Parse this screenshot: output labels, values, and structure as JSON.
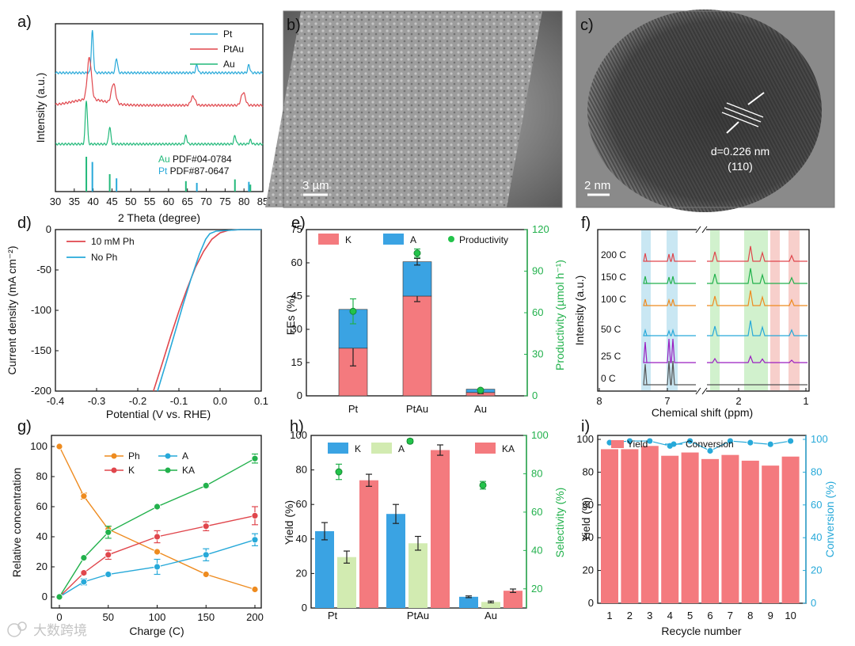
{
  "watermark": "大数跨境",
  "chart_data": [
    {
      "panel": "a",
      "type": "line",
      "xlabel": "2 Theta (degree)",
      "ylabel": "Intensity (a.u.)",
      "xlim": [
        30,
        85
      ],
      "xticks": [
        "30",
        "35",
        "40",
        "45",
        "50",
        "55",
        "60",
        "65",
        "70",
        "75",
        "80",
        "85"
      ],
      "legend": [
        "Pt",
        "PtAu",
        "Au"
      ],
      "series": [
        {
          "name": "Pt",
          "color": "#27a9d9",
          "peaks": [
            [
              39.8,
              0.85
            ],
            [
              46.2,
              0.3
            ],
            [
              67.5,
              0.16
            ],
            [
              81.3,
              0.16
            ]
          ]
        },
        {
          "name": "PtAu",
          "color": "#e0464c",
          "peaks": [
            [
              39.0,
              0.85
            ],
            [
              45.4,
              0.4
            ],
            [
              66.5,
              0.18
            ],
            [
              79.8,
              0.26
            ]
          ]
        },
        {
          "name": "Au",
          "color": "#22b97a",
          "peaks": [
            [
              38.2,
              0.9
            ],
            [
              44.4,
              0.35
            ],
            [
              64.6,
              0.17
            ],
            [
              77.6,
              0.17
            ],
            [
              81.7,
              0.08
            ]
          ]
        }
      ],
      "reference": [
        {
          "label": "Au",
          "card": "PDF#04-0784",
          "color": "#22b97a",
          "lines": [
            [
              38.2,
              1.0
            ],
            [
              44.4,
              0.5
            ],
            [
              64.6,
              0.3
            ],
            [
              77.6,
              0.35
            ],
            [
              81.7,
              0.2
            ]
          ]
        },
        {
          "label": "Pt",
          "card": "PDF#87-0647",
          "color": "#27a9d9",
          "lines": [
            [
              39.8,
              0.85
            ],
            [
              46.2,
              0.38
            ],
            [
              67.5,
              0.25
            ],
            [
              81.3,
              0.28
            ]
          ]
        }
      ]
    },
    {
      "panel": "b",
      "type": "image",
      "scale_bar": "3 µm"
    },
    {
      "panel": "c",
      "type": "image",
      "scale_bar": "2 nm",
      "annotation": [
        "d=0.226 nm",
        "(110)"
      ]
    },
    {
      "panel": "d",
      "type": "line",
      "xlabel": "Potential (V vs. RHE)",
      "ylabel": "Current density (mA cm⁻²)",
      "xlim": [
        -0.4,
        0.1
      ],
      "ylim": [
        -200,
        0
      ],
      "xticks": [
        "-0.4",
        "-0.3",
        "-0.2",
        "-0.1",
        "0.0",
        "0.1"
      ],
      "yticks": [
        "-200",
        "-150",
        "-100",
        "-50",
        "0"
      ],
      "series": [
        {
          "name": "10 mM Ph",
          "color": "#e0464c",
          "x": [
            -0.162,
            -0.14,
            -0.12,
            -0.1,
            -0.08,
            -0.06,
            -0.04,
            -0.02,
            0.0,
            0.02,
            0.05,
            0.1
          ],
          "y": [
            -200,
            -165,
            -132,
            -101,
            -73,
            -47,
            -27,
            -12,
            -4,
            -1,
            0,
            0
          ]
        },
        {
          "name": "No Ph",
          "color": "#27a9d9",
          "x": [
            -0.152,
            -0.13,
            -0.11,
            -0.09,
            -0.07,
            -0.05,
            -0.035,
            -0.025,
            -0.01,
            0.02,
            0.05,
            0.1
          ],
          "y": [
            -200,
            -163,
            -128,
            -93,
            -60,
            -30,
            -12,
            -5,
            -2,
            -1,
            0,
            0
          ]
        }
      ]
    },
    {
      "panel": "e",
      "type": "bar",
      "categories": [
        "Pt",
        "PtAu",
        "Au"
      ],
      "ylabel": "FEs (%)",
      "y2label": "Productivity (µmol h⁻¹)",
      "ylim": [
        0,
        75
      ],
      "y2lim": [
        0,
        120
      ],
      "yticks": [
        "0",
        "15",
        "30",
        "45",
        "60",
        "75"
      ],
      "y2ticks": [
        "0",
        "30",
        "60",
        "90",
        "120"
      ],
      "legend": [
        "K",
        "A",
        "Productivity"
      ],
      "series": [
        {
          "name": "K",
          "color": "#f47a7e",
          "values": [
            21.5,
            45,
            1.5
          ],
          "errors": [
            8,
            2.5,
            0.5
          ]
        },
        {
          "name": "A",
          "color": "#3aa3e3",
          "values": [
            17.5,
            15.5,
            1.5
          ],
          "errors": [
            0,
            1.5,
            0
          ]
        }
      ],
      "productivity": {
        "values": [
          61,
          103,
          4
        ],
        "errors": [
          9,
          3,
          1
        ]
      }
    },
    {
      "panel": "f",
      "type": "line",
      "xlabel": "Chemical shift (ppm)",
      "ylabel": "Intensity (a.u.)",
      "xticks": [
        "8",
        "7",
        "2",
        "1"
      ],
      "traces": [
        {
          "label": "200 C",
          "color": "#e0464c"
        },
        {
          "label": "150 C",
          "color": "#22b14c"
        },
        {
          "label": "100 C",
          "color": "#ee8b1f"
        },
        {
          "label": "50 C",
          "color": "#27a9d9"
        },
        {
          "label": "25 C",
          "color": "#9b1fc1"
        },
        {
          "label": "0 C",
          "color": "#555555"
        }
      ]
    },
    {
      "panel": "g",
      "type": "line",
      "xlabel": "Charge (C)",
      "ylabel": "Relative concentration",
      "xlim": [
        0,
        200
      ],
      "ylim": [
        0,
        100
      ],
      "xticks": [
        "0",
        "50",
        "100",
        "150",
        "200"
      ],
      "yticks": [
        "0",
        "20",
        "40",
        "60",
        "80",
        "100"
      ],
      "x": [
        0,
        25,
        50,
        100,
        150,
        200
      ],
      "series": [
        {
          "name": "Ph",
          "color": "#ee8b1f",
          "values": [
            100,
            67,
            45,
            30,
            15,
            5
          ],
          "errors": [
            0,
            2,
            2,
            0,
            0,
            0
          ]
        },
        {
          "name": "K",
          "color": "#e0464c",
          "values": [
            0,
            16,
            28,
            40,
            47,
            54
          ],
          "errors": [
            0,
            1,
            3,
            4,
            3,
            6
          ]
        },
        {
          "name": "A",
          "color": "#27a9d9",
          "values": [
            0,
            10,
            15,
            20,
            28,
            38
          ],
          "errors": [
            0,
            2,
            1,
            5,
            4,
            4
          ]
        },
        {
          "name": "KA",
          "color": "#22b14c",
          "values": [
            0,
            26,
            43,
            60,
            74,
            92
          ],
          "errors": [
            0,
            0,
            4,
            1,
            1,
            3
          ]
        }
      ]
    },
    {
      "panel": "h",
      "type": "bar",
      "categories": [
        "Pt",
        "PtAu",
        "Au"
      ],
      "ylabel": "Yield (%)",
      "y2label": "Selectivity (%)",
      "ylim": [
        0,
        100
      ],
      "y2lim": [
        10,
        100
      ],
      "yticks": [
        "0",
        "20",
        "40",
        "60",
        "80",
        "100"
      ],
      "y2ticks": [
        "20",
        "40",
        "60",
        "80",
        "100"
      ],
      "legend": [
        "K",
        "A",
        "KA"
      ],
      "series": [
        {
          "name": "K",
          "color": "#3aa3e3",
          "values": [
            44.5,
            54.5,
            6.5
          ],
          "errors": [
            5,
            5.5,
            0.5
          ]
        },
        {
          "name": "A",
          "color": "#d2ebb1",
          "values": [
            29.5,
            37.5,
            3.5
          ],
          "errors": [
            3.5,
            4,
            0.5
          ]
        },
        {
          "name": "KA",
          "color": "#f47a7e",
          "values": [
            74,
            91.5,
            10
          ],
          "errors": [
            3.5,
            3,
            1
          ]
        }
      ],
      "selectivity": {
        "values": [
          81,
          97,
          74
        ],
        "errors": [
          4,
          1,
          2
        ]
      }
    },
    {
      "panel": "i",
      "type": "bar",
      "categories": [
        "1",
        "2",
        "3",
        "4",
        "5",
        "6",
        "7",
        "8",
        "9",
        "10"
      ],
      "xlabel": "Recycle number",
      "ylabel": "Yield (%)",
      "y2label": "Conversion (%)",
      "ylim": [
        0,
        100
      ],
      "y2lim": [
        0,
        100
      ],
      "yticks": [
        "0",
        "20",
        "40",
        "60",
        "80",
        "100"
      ],
      "y2ticks": [
        "0",
        "20",
        "40",
        "60",
        "80",
        "100"
      ],
      "legend": [
        "Yield",
        "Conversion"
      ],
      "series": [
        {
          "name": "Yield",
          "color": "#f47a7e",
          "values": [
            94,
            94,
            96,
            90,
            92,
            88,
            90.5,
            87,
            84,
            89.5
          ]
        },
        {
          "name": "Conversion",
          "color": "#27a9d9",
          "values": [
            98,
            99,
            99,
            96,
            99,
            93,
            99,
            98,
            97,
            99
          ]
        }
      ]
    }
  ]
}
